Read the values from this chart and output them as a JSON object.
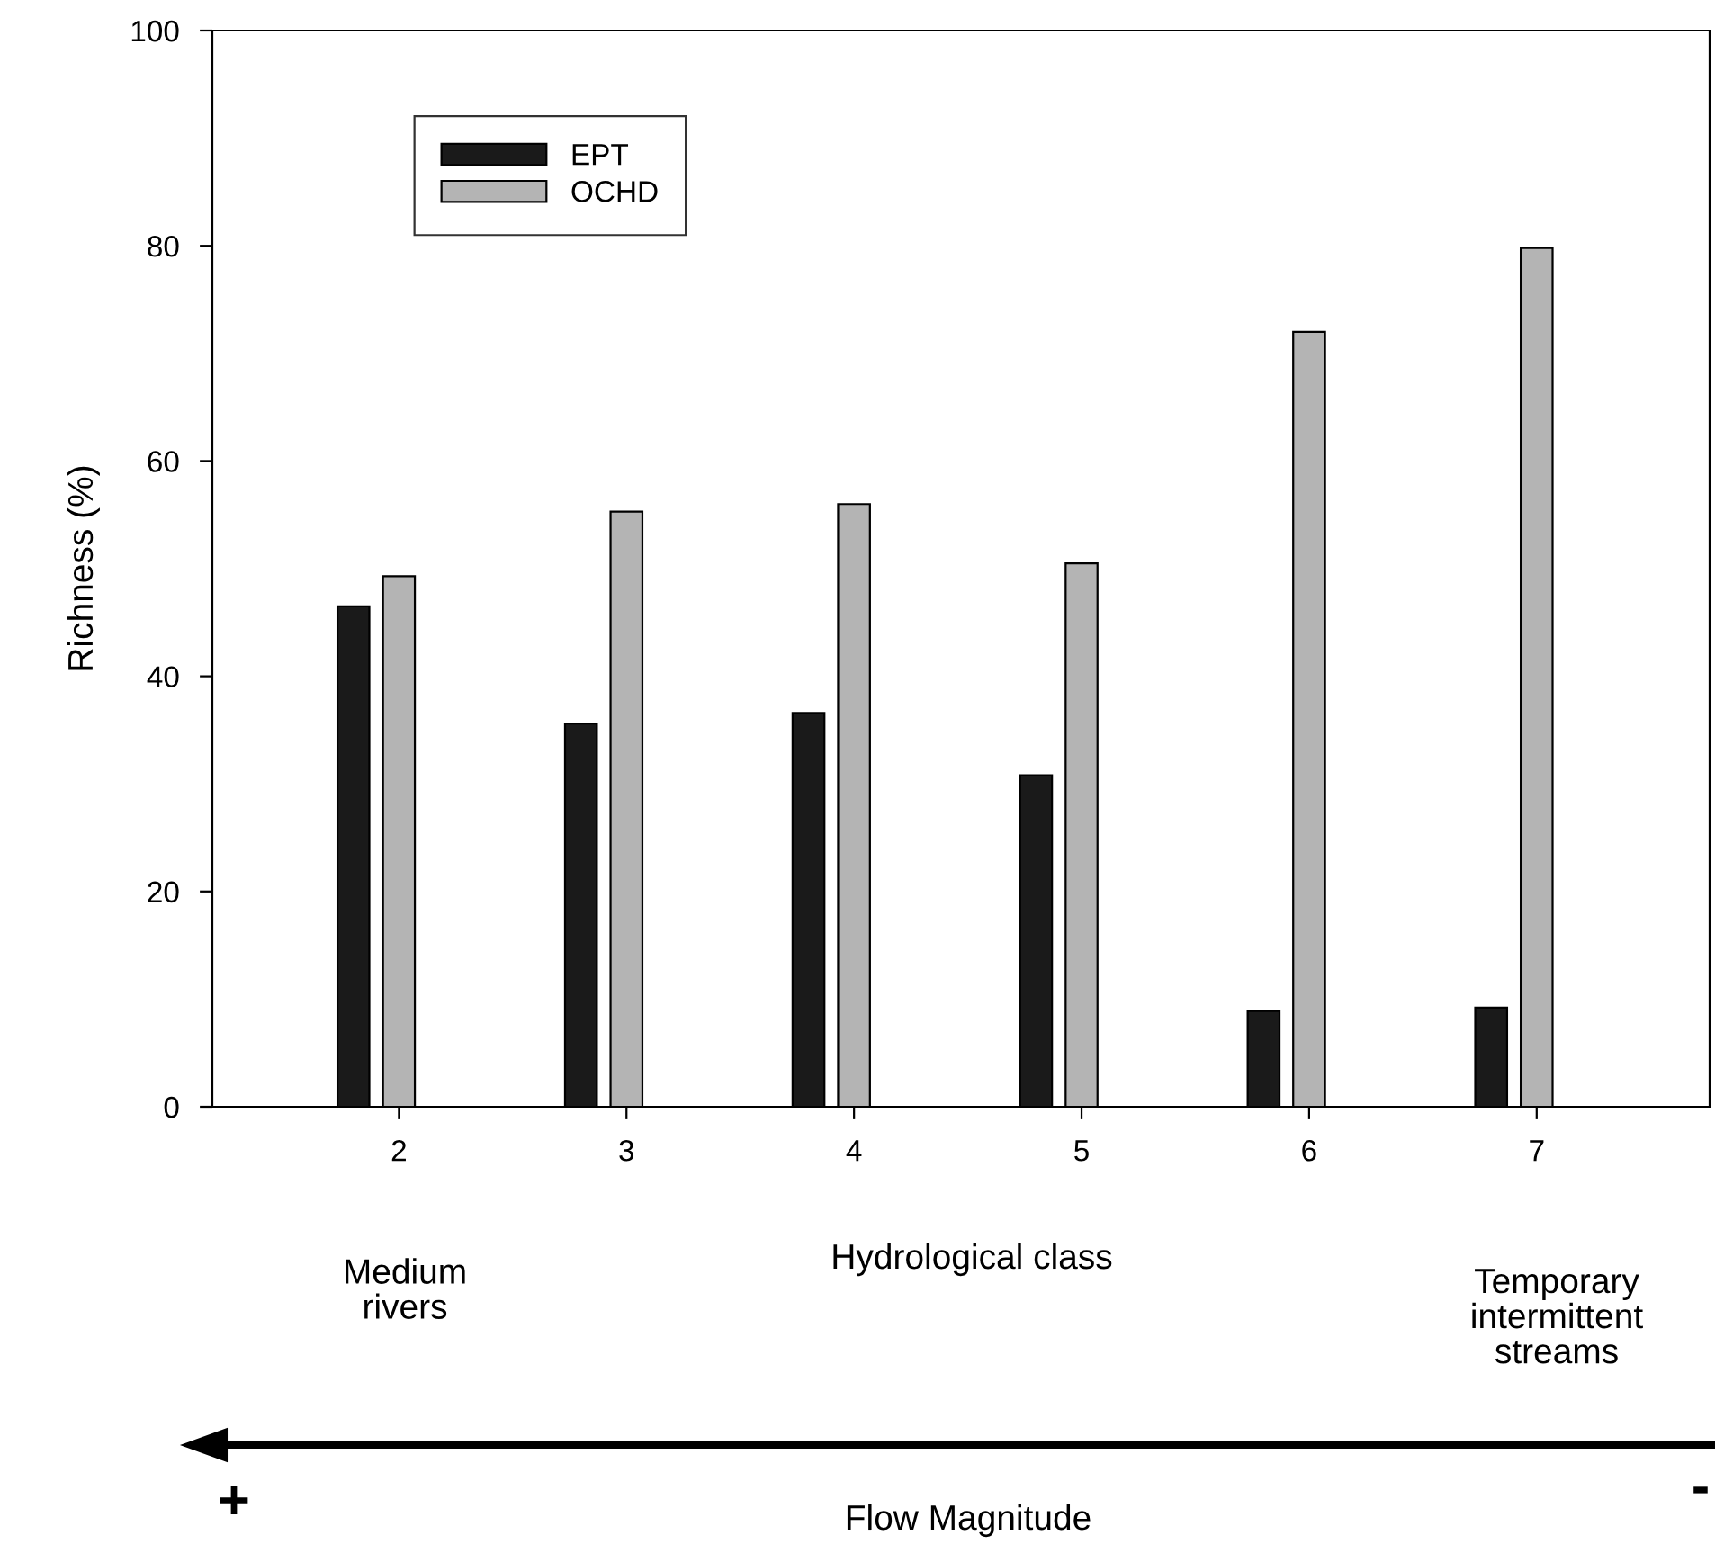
{
  "chart_data": {
    "type": "bar",
    "categories": [
      "2",
      "3",
      "4",
      "5",
      "6",
      "7"
    ],
    "series": [
      {
        "name": "EPT",
        "color": "#1a1a1a",
        "values": [
          46.5,
          35.6,
          36.6,
          30.8,
          8.9,
          9.2
        ]
      },
      {
        "name": "OCHD",
        "color": "#b4b4b4",
        "values": [
          49.3,
          55.3,
          56.0,
          50.5,
          72.0,
          79.8
        ]
      }
    ],
    "xlabel": "Hydrological class",
    "ylabel": "Richness (%)",
    "ylim": [
      0,
      100
    ],
    "yticks": [
      0,
      20,
      40,
      60,
      80,
      100
    ],
    "grid": false,
    "legend": "top left",
    "annotations": [
      "Medium\nrivers",
      "Temporary\nintermittent\nstreams",
      "+",
      "-",
      "Flow Magnitude"
    ]
  }
}
